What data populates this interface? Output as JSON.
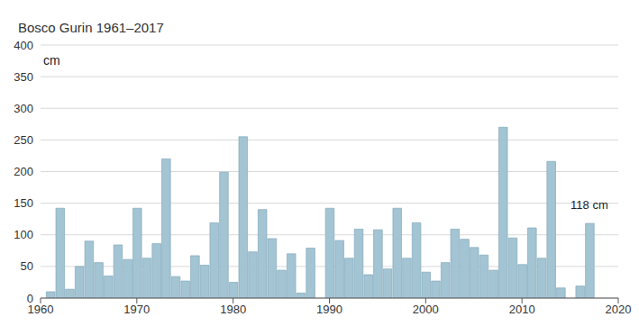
{
  "chart_data": {
    "type": "bar",
    "title": "Bosco Gurin 1961–2017",
    "y_label": "cm",
    "x": [
      1961,
      1962,
      1963,
      1964,
      1965,
      1966,
      1967,
      1968,
      1969,
      1970,
      1971,
      1972,
      1973,
      1974,
      1975,
      1976,
      1977,
      1978,
      1979,
      1980,
      1981,
      1982,
      1983,
      1984,
      1985,
      1986,
      1987,
      1988,
      1989,
      1990,
      1991,
      1992,
      1993,
      1994,
      1995,
      1996,
      1997,
      1998,
      1999,
      2000,
      2001,
      2002,
      2003,
      2004,
      2005,
      2006,
      2007,
      2008,
      2009,
      2010,
      2011,
      2012,
      2013,
      2014,
      2015,
      2016,
      2017
    ],
    "values": [
      10,
      142,
      14,
      50,
      90,
      56,
      35,
      84,
      61,
      142,
      63,
      86,
      220,
      34,
      27,
      67,
      52,
      119,
      199,
      25,
      255,
      73,
      140,
      94,
      44,
      70,
      8,
      79,
      null,
      142,
      91,
      63,
      109,
      37,
      108,
      46,
      142,
      63,
      119,
      41,
      27,
      56,
      109,
      93,
      80,
      68,
      44,
      270,
      95,
      53,
      111,
      63,
      216,
      16,
      null,
      19,
      118
    ],
    "color": "#a3c4d3",
    "xlim": [
      1960,
      2020
    ],
    "xticks": [
      1960,
      1970,
      1980,
      1990,
      2000,
      2010,
      2020
    ],
    "ylim": [
      0,
      400
    ],
    "yticks": [
      0,
      50,
      100,
      150,
      200,
      250,
      300,
      350,
      400
    ],
    "grid": true,
    "annotations": [
      {
        "text": "118 cm",
        "x": 2017,
        "y": 118
      }
    ]
  }
}
